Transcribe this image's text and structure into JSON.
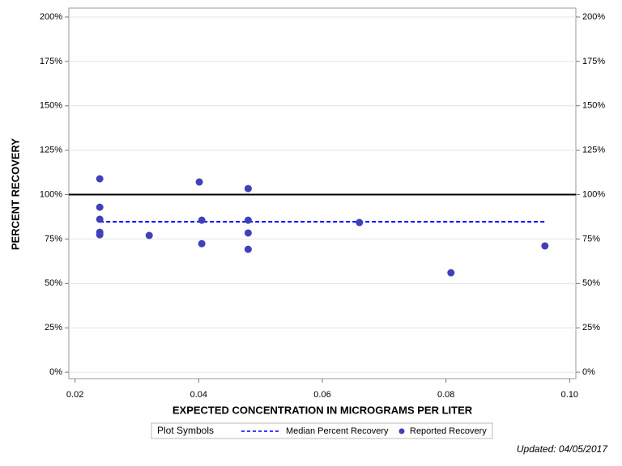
{
  "chart_data": {
    "type": "scatter",
    "x_label": "EXPECTED CONCENTRATION IN MICROGRAMS PER LITER",
    "y_label": "PERCENT RECOVERY",
    "xlim": [
      0.019,
      0.101
    ],
    "xticks": [
      0.02,
      0.04,
      0.06,
      0.08,
      {
        "value": 0.1,
        "label": "0.10"
      }
    ],
    "ylim": [
      -3.6,
      205
    ],
    "yticks": [
      {
        "value": 0,
        "label": "0%"
      },
      {
        "value": 25,
        "label": "25%"
      },
      {
        "value": 50,
        "label": "50%"
      },
      {
        "value": 75,
        "label": "75%"
      },
      {
        "value": 100,
        "label": "100%"
      },
      {
        "value": 125,
        "label": "125%"
      },
      {
        "value": 150,
        "label": "150%"
      },
      {
        "value": 175,
        "label": "175%"
      },
      {
        "value": 200,
        "label": "200%"
      }
    ],
    "grid": true,
    "reference_line": 100,
    "legend_title": "Plot Symbols",
    "series": [
      {
        "name": "Median Percent Recovery",
        "type": "line",
        "dashed": true,
        "color": "#0000ff",
        "x": [
          0.024,
          0.096
        ],
        "values": [
          84.7,
          84.7
        ]
      },
      {
        "name": "Reported Recovery",
        "type": "scatter",
        "color": "#4040b8",
        "x": [
          0.024,
          0.024,
          0.024,
          0.024,
          0.024,
          0.032,
          0.0401,
          0.0405,
          0.0405,
          0.048,
          0.048,
          0.048,
          0.048,
          0.066,
          0.0808,
          0.096
        ],
        "values": [
          108.9,
          92.9,
          86.1,
          78.8,
          77.4,
          77.0,
          107.1,
          85.6,
          72.4,
          103.4,
          85.6,
          78.4,
          69.2,
          84.3,
          56.0,
          71.1
        ]
      }
    ],
    "footnote": "Updated: 04/05/2017"
  }
}
